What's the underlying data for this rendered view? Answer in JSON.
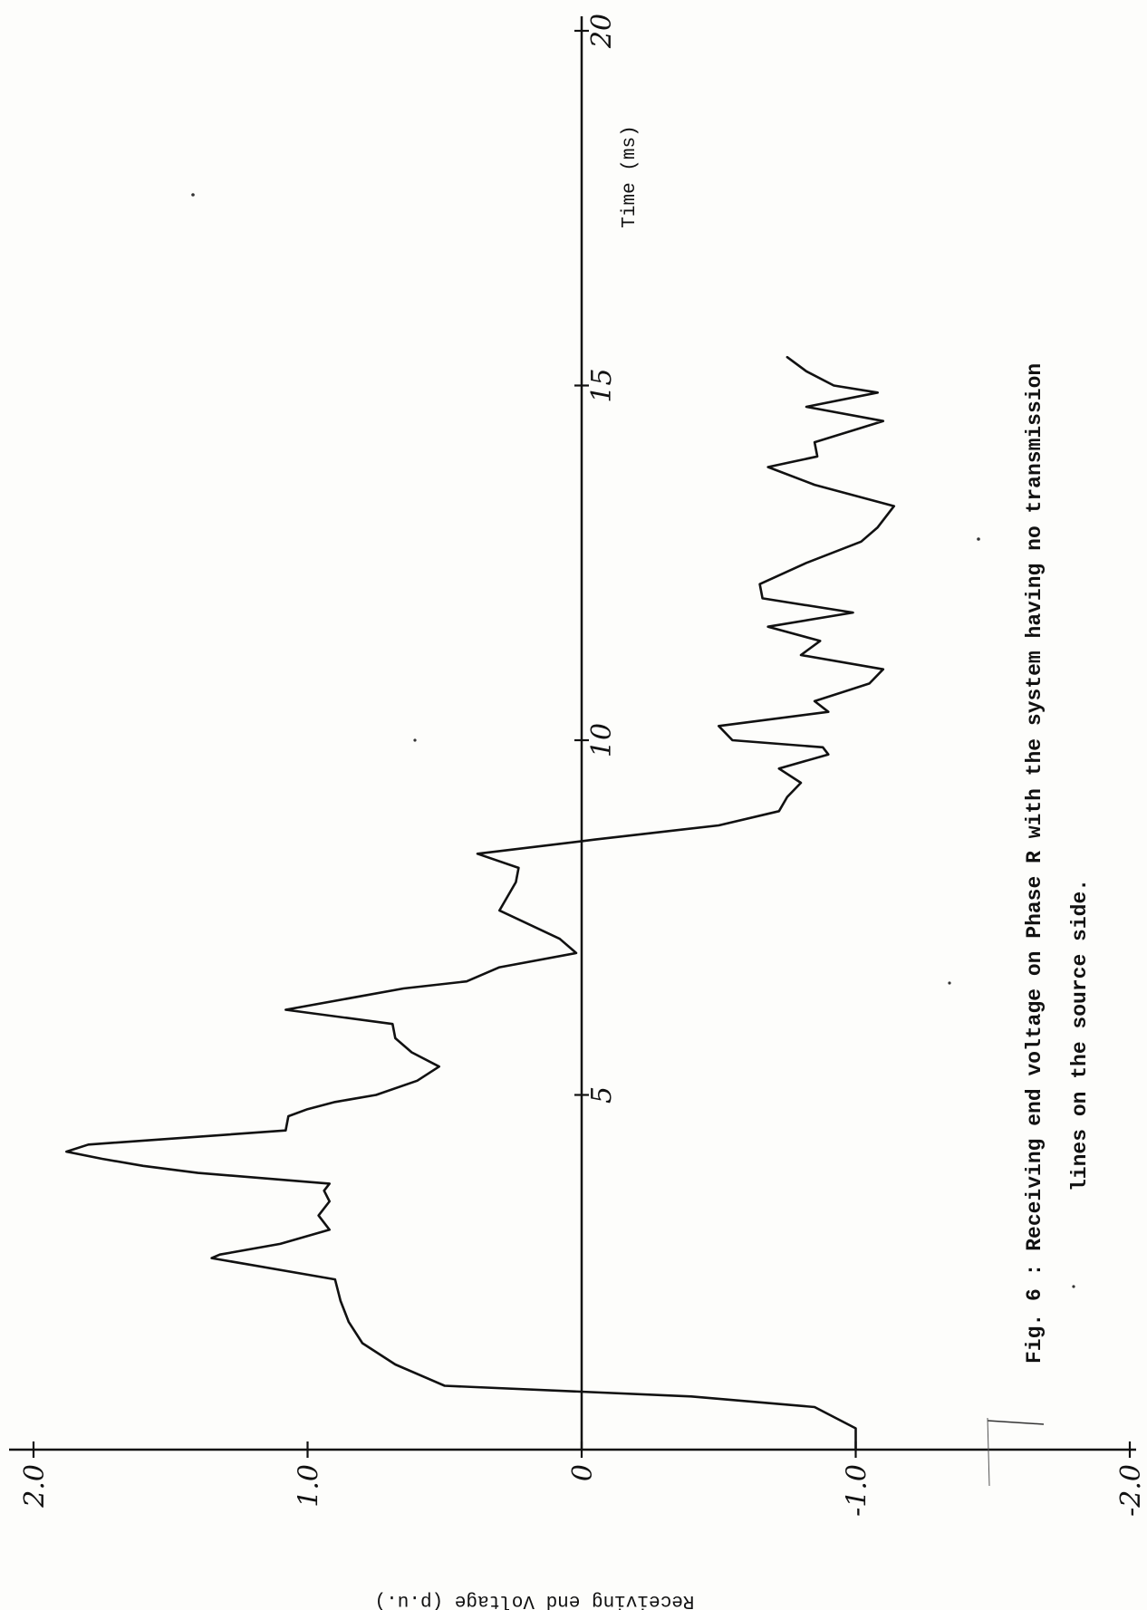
{
  "chart_data": {
    "type": "line",
    "orientation": "rotated 90 degrees counter-clockwise",
    "x_axis": {
      "label": "Time  (ms)",
      "range": [
        0,
        20
      ],
      "ticks": [
        {
          "value": 5,
          "label": "5"
        },
        {
          "value": 10,
          "label": "10"
        },
        {
          "value": 15,
          "label": "15"
        },
        {
          "value": 20,
          "label": "20"
        }
      ]
    },
    "y_axis": {
      "label": "Receiving end Voltage   (p.u.)",
      "range": [
        -2.0,
        2.0
      ],
      "ticks": [
        {
          "value": 2.0,
          "label": "2.0"
        },
        {
          "value": 1.0,
          "label": "1.0"
        },
        {
          "value": 0,
          "label": "0"
        },
        {
          "value": -1.0,
          "label": "-1.0"
        },
        {
          "value": -2.0,
          "label": "-2.0"
        }
      ]
    },
    "grid": false,
    "series": [
      {
        "x": [
          0,
          0.3,
          0.6,
          0.75,
          0.9,
          1.2,
          1.5,
          1.8,
          2.1,
          2.4,
          2.7,
          2.75,
          2.9,
          3.1,
          3.3,
          3.5,
          3.65,
          3.75,
          3.9,
          4.0,
          4.1,
          4.2,
          4.3,
          4.5,
          4.7,
          4.8,
          4.9,
          5.0,
          5.2,
          5.4,
          5.6,
          5.8,
          6.0,
          6.2,
          6.5,
          6.6,
          6.8,
          7.0,
          7.2,
          7.6,
          8.0,
          8.2,
          8.4,
          8.6,
          8.8,
          9.0,
          9.2,
          9.4,
          9.6,
          9.8,
          9.9,
          10.0,
          10.2,
          10.4,
          10.55,
          10.8,
          11.0,
          11.2,
          11.4,
          11.6,
          11.8,
          12.0,
          12.2,
          12.5,
          12.8,
          13.0,
          13.3,
          13.6,
          13.85,
          14.0,
          14.2,
          14.5,
          14.7,
          14.9,
          15.0,
          15.2,
          15.4
        ],
        "y": [
          -1.0,
          -1.0,
          -0.85,
          -0.4,
          0.5,
          0.68,
          0.8,
          0.85,
          0.88,
          0.9,
          1.35,
          1.32,
          1.1,
          0.92,
          0.96,
          0.92,
          0.94,
          0.92,
          1.4,
          1.6,
          1.75,
          1.88,
          1.8,
          1.08,
          1.07,
          1.0,
          0.9,
          0.75,
          0.6,
          0.52,
          0.62,
          0.68,
          0.69,
          1.08,
          0.65,
          0.42,
          0.3,
          0.02,
          0.08,
          0.3,
          0.24,
          0.23,
          0.38,
          -0.05,
          -0.5,
          -0.72,
          -0.75,
          -0.8,
          -0.72,
          -0.9,
          -0.88,
          -0.55,
          -0.5,
          -0.9,
          -0.85,
          -1.05,
          -1.1,
          -0.8,
          -0.87,
          -0.68,
          -0.99,
          -0.66,
          -0.65,
          -0.82,
          -1.02,
          -1.08,
          -1.14,
          -0.85,
          -0.68,
          -0.86,
          -0.85,
          -1.1,
          -0.82,
          -1.08,
          -0.92,
          -0.82,
          -0.75
        ]
      }
    ]
  },
  "caption": {
    "line1": "Fig. 6 :  Receiving end voltage on Phase R with the system having no transmission",
    "line2": "lines on the source side."
  }
}
